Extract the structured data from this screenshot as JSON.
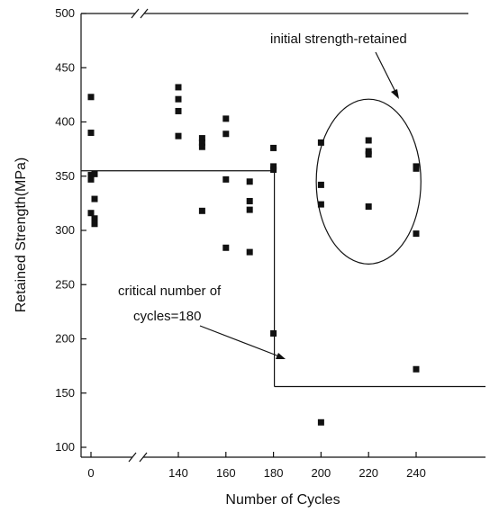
{
  "chart_data": {
    "type": "scatter",
    "title": "",
    "xlabel": "Number of Cycles",
    "ylabel": "Retained Strength(MPa)",
    "ylim": [
      100,
      500
    ],
    "y_ticks": [
      100,
      150,
      200,
      250,
      300,
      350,
      400,
      450,
      500
    ],
    "x_ticks": [
      0,
      140,
      160,
      180,
      200,
      220,
      240
    ],
    "x_ticks_labeled": [
      0,
      140,
      160,
      180,
      200,
      220,
      240
    ],
    "x_axis_break": "between 0 and 140",
    "grid": false,
    "points": [
      {
        "x": 0,
        "y": 423
      },
      {
        "x": 0,
        "y": 390
      },
      {
        "x": 0,
        "y": 351
      },
      {
        "x": 0,
        "y": 347
      },
      {
        "x": 0,
        "y": 316
      },
      {
        "x": 2,
        "y": 352
      },
      {
        "x": 2,
        "y": 329
      },
      {
        "x": 2,
        "y": 311
      },
      {
        "x": 2,
        "y": 306
      },
      {
        "x": 140,
        "y": 432
      },
      {
        "x": 140,
        "y": 421
      },
      {
        "x": 140,
        "y": 410
      },
      {
        "x": 140,
        "y": 387
      },
      {
        "x": 150,
        "y": 385
      },
      {
        "x": 150,
        "y": 381
      },
      {
        "x": 150,
        "y": 377
      },
      {
        "x": 150,
        "y": 318
      },
      {
        "x": 160,
        "y": 403
      },
      {
        "x": 160,
        "y": 389
      },
      {
        "x": 160,
        "y": 347
      },
      {
        "x": 160,
        "y": 284
      },
      {
        "x": 170,
        "y": 345
      },
      {
        "x": 170,
        "y": 327
      },
      {
        "x": 170,
        "y": 319
      },
      {
        "x": 170,
        "y": 280
      },
      {
        "x": 180,
        "y": 376
      },
      {
        "x": 180,
        "y": 359
      },
      {
        "x": 180,
        "y": 356
      },
      {
        "x": 180,
        "y": 205
      },
      {
        "x": 200,
        "y": 381
      },
      {
        "x": 200,
        "y": 342
      },
      {
        "x": 200,
        "y": 324
      },
      {
        "x": 200,
        "y": 123
      },
      {
        "x": 220,
        "y": 383
      },
      {
        "x": 220,
        "y": 373
      },
      {
        "x": 220,
        "y": 370
      },
      {
        "x": 220,
        "y": 322
      },
      {
        "x": 240,
        "y": 359
      },
      {
        "x": 240,
        "y": 357
      },
      {
        "x": 240,
        "y": 297
      },
      {
        "x": 240,
        "y": 172
      }
    ],
    "annotations": [
      {
        "text": "initial strength-retained"
      },
      {
        "text": "critical number of"
      },
      {
        "text": "cycles=180"
      }
    ],
    "reference_lines": {
      "pre_critical_strength": 355,
      "critical_cycles": 180,
      "post_critical_strength": 156
    },
    "circle_region": {
      "x_center": 220,
      "y_center": 345,
      "x_radius": 22,
      "y_radius": 76
    }
  },
  "colors": {
    "ink": "#111111",
    "background": "#ffffff"
  }
}
